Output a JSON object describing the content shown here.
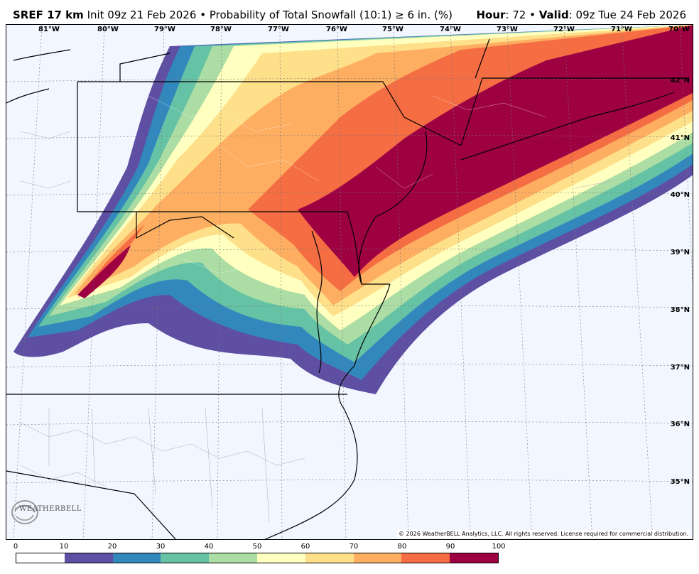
{
  "header": {
    "model": "SREF 17 km",
    "init": "Init 09z 21 Feb 2026",
    "sep": "•",
    "product": "Probability of Total Snowfall (10:1) ≥ 6 in. (%)",
    "hour_label": "Hour",
    "hour_value": ": 72",
    "valid_label": "Valid",
    "valid_value": ": 09z Tue 24 Feb 2026"
  },
  "map": {
    "longitudes": [
      "81°W",
      "80°W",
      "79°W",
      "78°W",
      "77°W",
      "76°W",
      "75°W",
      "74°W",
      "73°W",
      "72°W",
      "71°W",
      "70°W"
    ],
    "latitudes": [
      "42°N",
      "41°N",
      "40°N",
      "39°N",
      "38°N",
      "37°N",
      "36°N",
      "35°N"
    ],
    "copyright": "© 2026 WeatherBELL Analytics, LLC. All rights reserved. License required for commercial distribution.",
    "logo_text": "WEATHERBELL"
  },
  "colorbar": {
    "labels": [
      "0",
      "10",
      "20",
      "30",
      "40",
      "50",
      "60",
      "70",
      "80",
      "90",
      "100"
    ],
    "colors": [
      "#ffffff",
      "#5e4fa2",
      "#3288bd",
      "#66c2a5",
      "#abdda4",
      "#ffffbf",
      "#fee08b",
      "#fdae61",
      "#f46d43",
      "#9e0142"
    ]
  }
}
